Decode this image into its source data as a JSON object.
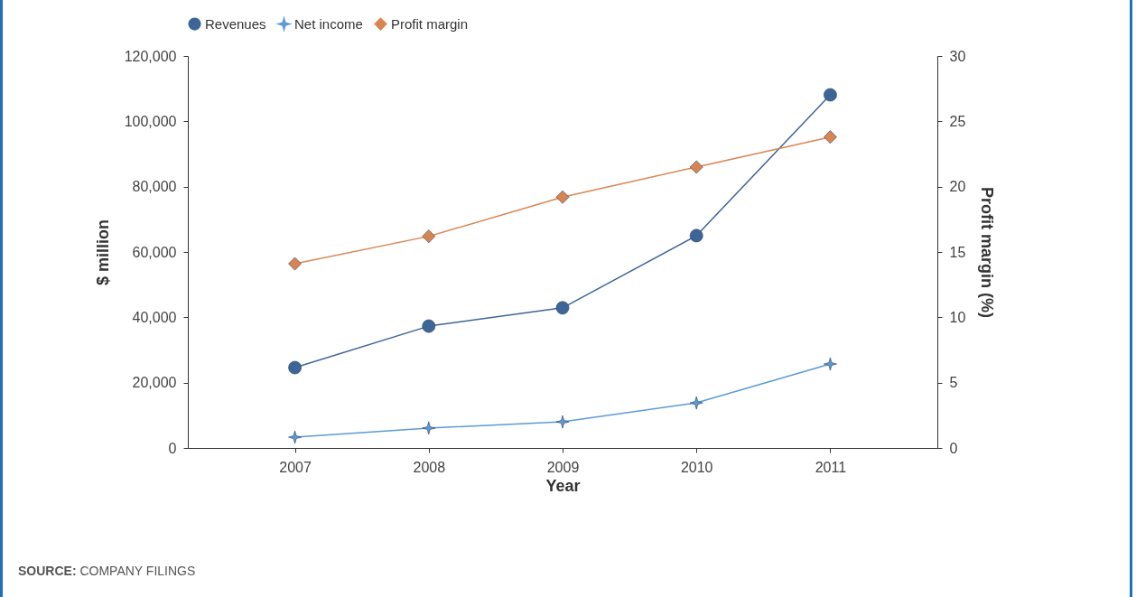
{
  "chart_data": {
    "type": "line",
    "xlabel": "Year",
    "ylabel": "$ million",
    "y2label": "Profit margin (%)",
    "categories": [
      "2007",
      "2008",
      "2009",
      "2010",
      "2011"
    ],
    "series": [
      {
        "name": "Revenues",
        "color": "#3d6597",
        "marker": "circle",
        "values": [
          24600,
          37300,
          42900,
          65000,
          108100
        ]
      },
      {
        "name": "Net income",
        "color": "#5b9bd5",
        "marker": "star",
        "values": [
          3300,
          6100,
          8000,
          13800,
          25700
        ]
      },
      {
        "name": "Profit margin",
        "color": "#d98552",
        "marker": "diamond",
        "axis": "y2",
        "values": [
          14.1,
          16.2,
          19.2,
          21.5,
          23.8
        ]
      }
    ],
    "ylim": [
      0,
      120000
    ],
    "yticks": [
      {
        "value": 0,
        "label": "0"
      },
      {
        "value": 20000,
        "label": "20,000"
      },
      {
        "value": 40000,
        "label": "40,000"
      },
      {
        "value": 60000,
        "label": "60,000"
      },
      {
        "value": 80000,
        "label": "80,000"
      },
      {
        "value": 100000,
        "label": "100,000"
      },
      {
        "value": 120000,
        "label": "120,000"
      }
    ],
    "y2lim": [
      0,
      30
    ],
    "y2ticks": [
      0,
      5,
      10,
      15,
      20,
      25,
      30
    ],
    "grid": false,
    "legend": "top",
    "annotations": [
      "SOURCE: COMPANY FILINGS"
    ]
  }
}
